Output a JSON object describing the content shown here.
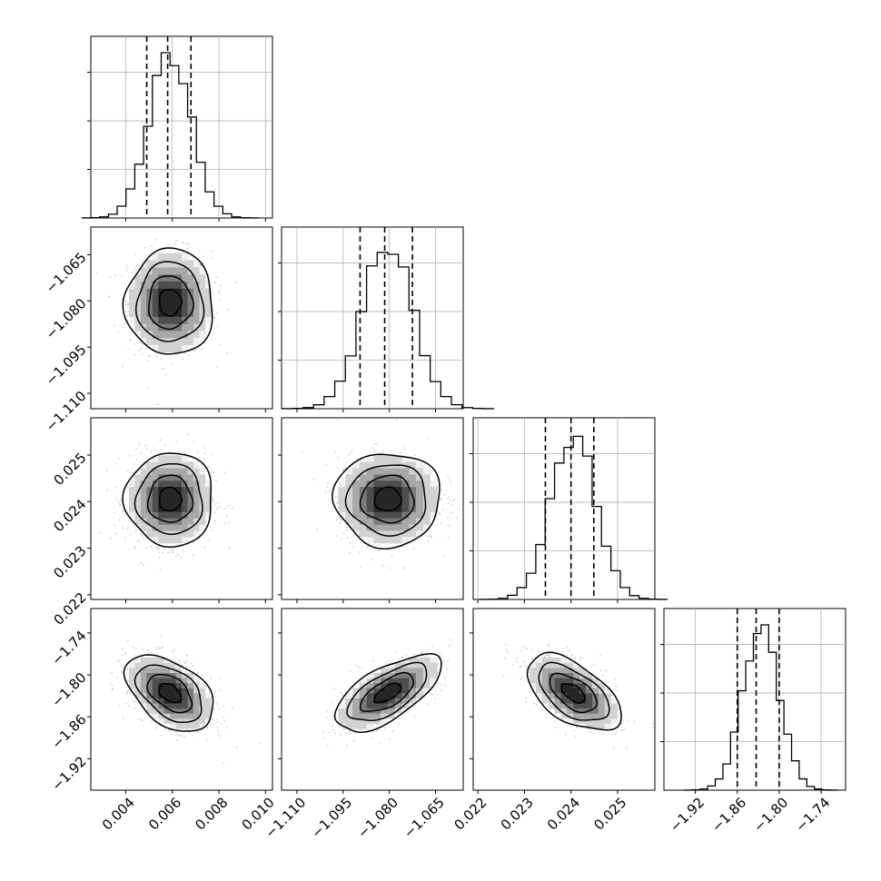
{
  "chart_data": {
    "type": "corner",
    "parameters": [
      {
        "range": [
          0.0025,
          0.0103
        ],
        "ticks": [
          0.004,
          0.006,
          0.008,
          0.01
        ],
        "tick_labels": [
          "0.004",
          "0.006",
          "0.008",
          "0.010"
        ],
        "mean": 0.0059,
        "sd": 0.0009,
        "quantiles": [
          0.0049,
          0.0058,
          0.0068
        ]
      },
      {
        "range": [
          -1.115,
          -1.056
        ],
        "ticks": [
          -1.11,
          -1.095,
          -1.08,
          -1.065
        ],
        "tick_labels": [
          "−1.110",
          "−1.095",
          "−1.080",
          "−1.065"
        ],
        "mean": -1.0805,
        "sd": 0.0082,
        "quantiles": [
          -1.0895,
          -1.0815,
          -1.0725
        ]
      },
      {
        "range": [
          0.0219,
          0.0258
        ],
        "ticks": [
          0.022,
          0.023,
          0.024,
          0.025
        ],
        "tick_labels": [
          "0.022",
          "0.023",
          "0.024",
          "0.025"
        ],
        "mean": 0.02405,
        "sd": 0.00048,
        "quantiles": [
          0.02345,
          0.024,
          0.02449
        ]
      },
      {
        "range": [
          -1.965,
          -1.705
        ],
        "ticks": [
          -1.92,
          -1.86,
          -1.8,
          -1.74
        ],
        "tick_labels": [
          "−1.92",
          "−1.86",
          "−1.80",
          "−1.74"
        ],
        "mean": -1.826,
        "sd": 0.026,
        "quantiles": [
          -1.86,
          -1.833,
          -1.8
        ]
      }
    ],
    "correlations": [
      {
        "i": 1,
        "j": 0,
        "rho": 0.0
      },
      {
        "i": 2,
        "j": 0,
        "rho": 0.0
      },
      {
        "i": 2,
        "j": 1,
        "rho": 0.0
      },
      {
        "i": 3,
        "j": 0,
        "rho": -0.45
      },
      {
        "i": 3,
        "j": 1,
        "rho": 0.65
      },
      {
        "i": 3,
        "j": 2,
        "rho": -0.55
      }
    ],
    "histogram_bins": 20,
    "contour_levels_sigma": [
      0.5,
      1.0,
      1.5,
      2.0
    ],
    "quantile_lines": "dashed",
    "grid": true
  }
}
